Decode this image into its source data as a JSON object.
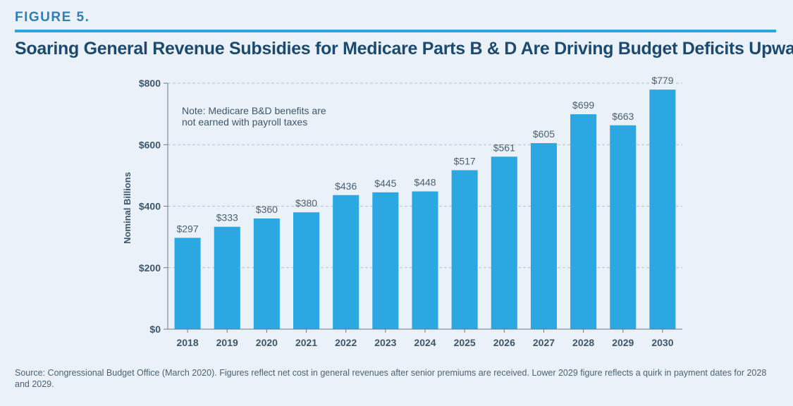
{
  "figure_label": "FIGURE 5.",
  "title": "Soaring General Revenue Subsidies for Medicare Parts B & D Are Driving Budget Deficits Upward",
  "note_line1": "Note: Medicare B&D benefits are",
  "note_line2": "not earned with payroll taxes",
  "source": "Source: Congressional Budget Office (March 2020). Figures reflect net cost in general revenues after senior premiums are received. Lower 2029 figure reflects a quirk in payment dates for 2028 and 2029.",
  "colors": {
    "bar": "#2ba7e1",
    "axis_text": "#3d566b",
    "label_text": "#4a5f70",
    "accent": "#2ea3dc"
  },
  "chart_data": {
    "type": "bar",
    "categories": [
      "2018",
      "2019",
      "2020",
      "2021",
      "2022",
      "2023",
      "2024",
      "2025",
      "2026",
      "2027",
      "2028",
      "2029",
      "2030"
    ],
    "values": [
      297,
      333,
      360,
      380,
      436,
      445,
      448,
      517,
      561,
      605,
      699,
      663,
      779
    ],
    "data_labels": [
      "$297",
      "$333",
      "$360",
      "$380",
      "$436",
      "$445",
      "$448",
      "$517",
      "$561",
      "$605",
      "$699",
      "$663",
      "$779"
    ],
    "ylabel": "Nominal Billions",
    "xlabel": "",
    "ylim": [
      0,
      800
    ],
    "y_ticks": [
      0,
      200,
      400,
      600,
      800
    ],
    "y_tick_labels": [
      "$0",
      "$200",
      "$400",
      "$600",
      "$800"
    ],
    "grid": "dashed horizontal"
  }
}
